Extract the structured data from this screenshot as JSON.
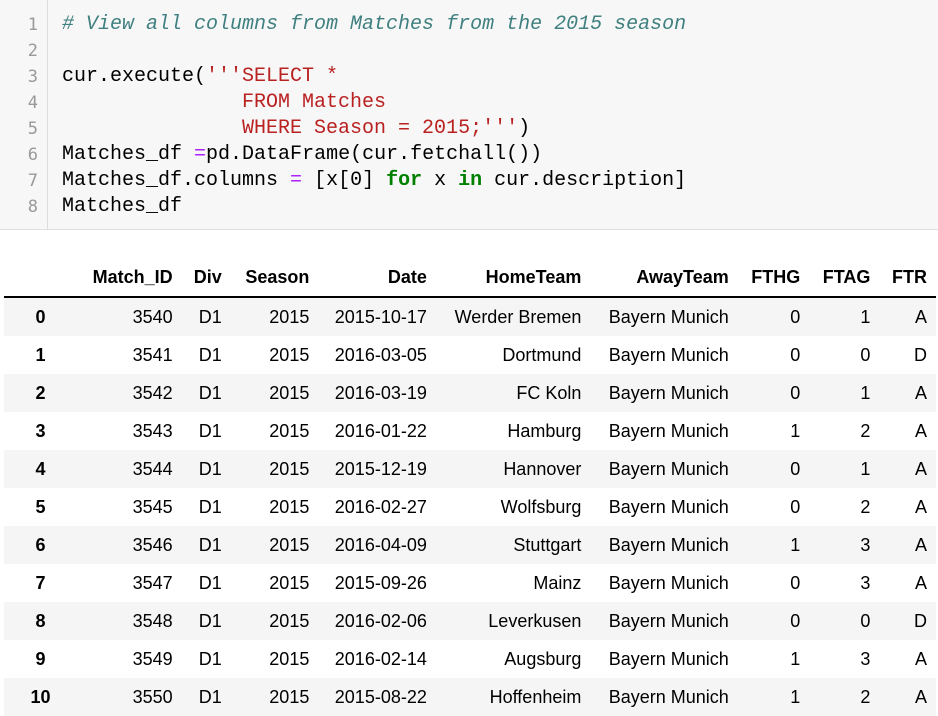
{
  "code": {
    "line_numbers": [
      "1",
      "2",
      "3",
      "4",
      "5",
      "6",
      "7",
      "8"
    ],
    "lines": [
      [
        {
          "t": "# View all columns from Matches from the 2015 season",
          "c": "cm"
        }
      ],
      [],
      [
        {
          "t": "cur.execute(",
          "c": ""
        },
        {
          "t": "'''SELECT *",
          "c": "st"
        }
      ],
      [
        {
          "t": "               FROM Matches",
          "c": "st"
        }
      ],
      [
        {
          "t": "               WHERE Season = 2015;'''",
          "c": "st"
        },
        {
          "t": ")",
          "c": ""
        }
      ],
      [
        {
          "t": "Matches_df ",
          "c": ""
        },
        {
          "t": "=",
          "c": "op"
        },
        {
          "t": "pd.DataFrame(cur.fetchall())",
          "c": ""
        }
      ],
      [
        {
          "t": "Matches_df.columns ",
          "c": ""
        },
        {
          "t": "=",
          "c": "op"
        },
        {
          "t": " [x[0] ",
          "c": ""
        },
        {
          "t": "for",
          "c": "kw"
        },
        {
          "t": " x ",
          "c": ""
        },
        {
          "t": "in",
          "c": "kw"
        },
        {
          "t": " cur.description]",
          "c": ""
        }
      ],
      [
        {
          "t": "Matches_df",
          "c": ""
        }
      ]
    ]
  },
  "table": {
    "columns": [
      "",
      "Match_ID",
      "Div",
      "Season",
      "Date",
      "HomeTeam",
      "AwayTeam",
      "FTHG",
      "FTAG",
      "FTR"
    ],
    "rows": [
      [
        "0",
        "3540",
        "D1",
        "2015",
        "2015-10-17",
        "Werder Bremen",
        "Bayern Munich",
        "0",
        "1",
        "A"
      ],
      [
        "1",
        "3541",
        "D1",
        "2015",
        "2016-03-05",
        "Dortmund",
        "Bayern Munich",
        "0",
        "0",
        "D"
      ],
      [
        "2",
        "3542",
        "D1",
        "2015",
        "2016-03-19",
        "FC Koln",
        "Bayern Munich",
        "0",
        "1",
        "A"
      ],
      [
        "3",
        "3543",
        "D1",
        "2015",
        "2016-01-22",
        "Hamburg",
        "Bayern Munich",
        "1",
        "2",
        "A"
      ],
      [
        "4",
        "3544",
        "D1",
        "2015",
        "2015-12-19",
        "Hannover",
        "Bayern Munich",
        "0",
        "1",
        "A"
      ],
      [
        "5",
        "3545",
        "D1",
        "2015",
        "2016-02-27",
        "Wolfsburg",
        "Bayern Munich",
        "0",
        "2",
        "A"
      ],
      [
        "6",
        "3546",
        "D1",
        "2015",
        "2016-04-09",
        "Stuttgart",
        "Bayern Munich",
        "1",
        "3",
        "A"
      ],
      [
        "7",
        "3547",
        "D1",
        "2015",
        "2015-09-26",
        "Mainz",
        "Bayern Munich",
        "0",
        "3",
        "A"
      ],
      [
        "8",
        "3548",
        "D1",
        "2015",
        "2016-02-06",
        "Leverkusen",
        "Bayern Munich",
        "0",
        "0",
        "D"
      ],
      [
        "9",
        "3549",
        "D1",
        "2015",
        "2016-02-14",
        "Augsburg",
        "Bayern Munich",
        "1",
        "3",
        "A"
      ],
      [
        "10",
        "3550",
        "D1",
        "2015",
        "2015-08-22",
        "Hoffenheim",
        "Bayern Munich",
        "1",
        "2",
        "A"
      ]
    ]
  }
}
